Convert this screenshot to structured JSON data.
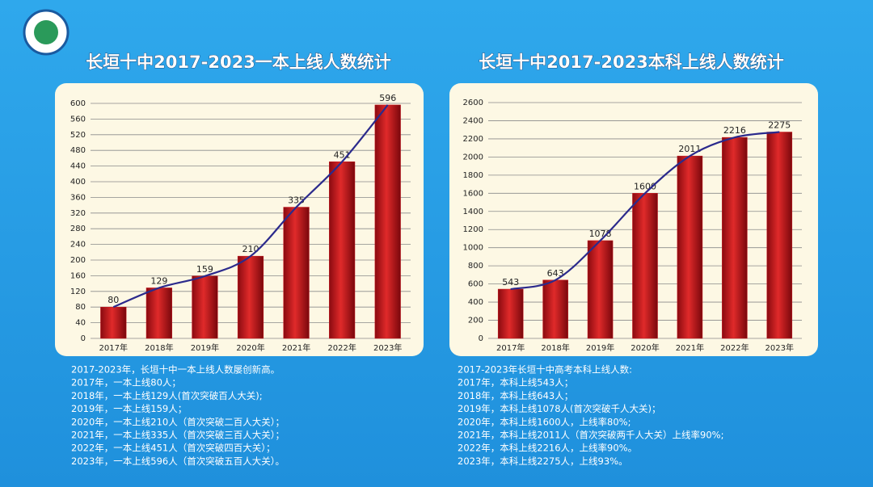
{
  "chart_data": [
    {
      "type": "bar",
      "title": "长垣十中2017-2023一本上线人数统计",
      "categories": [
        "2017年",
        "2018年",
        "2019年",
        "2020年",
        "2021年",
        "2022年",
        "2023年"
      ],
      "values": [
        80,
        129,
        159,
        210,
        335,
        451,
        596
      ],
      "ylim": [
        0,
        600
      ],
      "yticks": [
        0,
        40,
        80,
        120,
        160,
        200,
        240,
        280,
        320,
        360,
        400,
        440,
        480,
        520,
        560,
        600
      ],
      "color": "#c8141c",
      "line_color": "#2b2a8c",
      "grid": true
    },
    {
      "type": "bar",
      "title": "长垣十中2017-2023本科上线人数统计",
      "categories": [
        "2017年",
        "2018年",
        "2019年",
        "2020年",
        "2021年",
        "2022年",
        "2023年"
      ],
      "values": [
        543,
        643,
        1078,
        1600,
        2011,
        2216,
        2275
      ],
      "ylim": [
        0,
        2600
      ],
      "yticks": [
        0,
        200,
        400,
        600,
        800,
        1000,
        1200,
        1400,
        1600,
        1800,
        2000,
        2200,
        2400,
        2600
      ],
      "color": "#c8141c",
      "line_color": "#2b2a8c",
      "grid": true
    }
  ],
  "notes": [
    [
      "2017-2023年，长垣十中一本上线人数屡创新高。",
      "2017年，一本上线80人；",
      "2018年，一本上线129人(首次突破百人大关);",
      "2019年，一本上线159人；",
      "2020年，一本上线210人（首次突破二百人大关）；",
      "2021年，一本上线335人（首次突破三百人大关）；",
      "2022年，一本上线451人（首次突破四百大关）；",
      "2023年，一本上线596人（首次突破五百人大关）。"
    ],
    [
      "2017-2023年长垣十中高考本科上线人数:",
      "2017年，本科上线543人；",
      "2018年，本科上线643人；",
      "2019年，本科上线1078人(首次突破千人大关)；",
      "2020年，本科上线1600人，上线率80%;",
      "2021年，本科上线2011人（首次突破两千人大关）上线率90%;",
      "2022年，本科上线2216人，上线率90%。",
      "2023年，本科上线2275人，上线93%。"
    ]
  ]
}
